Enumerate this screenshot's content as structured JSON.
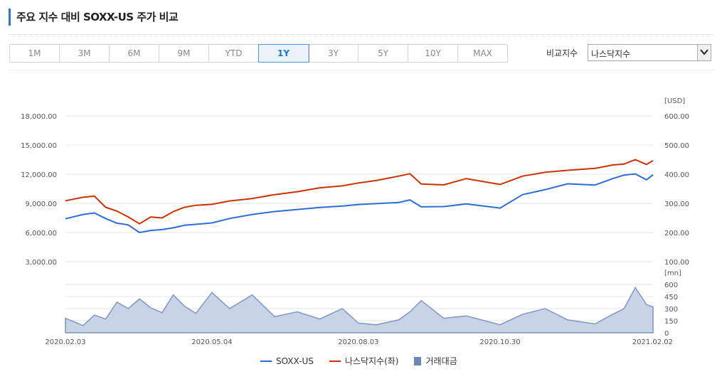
{
  "title": "주요 지수 대비 SOXX-US 주가 비교",
  "periods": [
    "1M",
    "3M",
    "6M",
    "9M",
    "YTD",
    "1Y",
    "3Y",
    "5Y",
    "10Y",
    "MAX"
  ],
  "active_period": "1Y",
  "compare": {
    "label": "비교지수",
    "value": "나스닥지수"
  },
  "colors": {
    "soxx": "#2b6fd6",
    "nasdaq": "#cc3300",
    "volume_fill": "#c9d3e6",
    "volume_line": "#7f96c4",
    "volume_legend": "#6d86b8"
  },
  "chart_data": {
    "type": "line",
    "x_ticks": [
      "2020.02.03",
      "2020.05.04",
      "2020.08.03",
      "2020.10.30",
      "2021.02.02"
    ],
    "left_axis": {
      "ticks": [
        "18,000.00",
        "15,000.00",
        "12,000.00",
        "9,000.00",
        "6,000.00",
        "3,000.00"
      ],
      "range": [
        3000,
        18000
      ]
    },
    "right_axis": {
      "unit": "[USD]",
      "ticks": [
        "600.00",
        "500.00",
        "400.00",
        "300.00",
        "200.00",
        "100.00"
      ],
      "range": [
        100,
        600
      ]
    },
    "volume_axis": {
      "unit": "[mn]",
      "ticks": [
        "600",
        "450",
        "300",
        "150",
        "0"
      ],
      "range": [
        0,
        600
      ]
    },
    "x_range": [
      "2020.02.03",
      "2021.02.02"
    ],
    "series": [
      {
        "name": "SOXX-US",
        "axis": "right",
        "x": [
          "2020.02.03",
          "2020.02.14",
          "2020.02.21",
          "2020.02.28",
          "2020.03.06",
          "2020.03.13",
          "2020.03.20",
          "2020.03.27",
          "2020.04.03",
          "2020.04.10",
          "2020.04.17",
          "2020.04.24",
          "2020.05.04",
          "2020.05.15",
          "2020.05.29",
          "2020.06.12",
          "2020.06.26",
          "2020.07.10",
          "2020.07.24",
          "2020.08.03",
          "2020.08.14",
          "2020.08.28",
          "2020.09.04",
          "2020.09.11",
          "2020.09.25",
          "2020.10.09",
          "2020.10.30",
          "2020.11.13",
          "2020.11.27",
          "2020.12.11",
          "2020.12.28",
          "2021.01.08",
          "2021.01.15",
          "2021.01.22",
          "2021.01.29",
          "2021.02.02"
        ],
        "values": [
          247,
          262,
          267,
          248,
          232,
          226,
          200,
          207,
          210,
          216,
          225,
          228,
          233,
          248,
          262,
          272,
          279,
          286,
          291,
          296,
          299,
          303,
          312,
          288,
          289,
          298,
          284,
          330,
          347,
          367,
          363,
          385,
          397,
          401,
          381,
          398
        ]
      },
      {
        "name": "나스닥지수(좌)",
        "axis": "left",
        "x": [
          "2020.02.03",
          "2020.02.14",
          "2020.02.21",
          "2020.02.28",
          "2020.03.06",
          "2020.03.13",
          "2020.03.20",
          "2020.03.27",
          "2020.04.03",
          "2020.04.10",
          "2020.04.17",
          "2020.04.24",
          "2020.05.04",
          "2020.05.15",
          "2020.05.29",
          "2020.06.12",
          "2020.06.26",
          "2020.07.10",
          "2020.07.24",
          "2020.08.03",
          "2020.08.14",
          "2020.08.28",
          "2020.09.04",
          "2020.09.11",
          "2020.09.25",
          "2020.10.09",
          "2020.10.30",
          "2020.11.13",
          "2020.11.27",
          "2020.12.11",
          "2020.12.28",
          "2021.01.08",
          "2021.01.15",
          "2021.01.22",
          "2021.01.29",
          "2021.02.02"
        ],
        "values": [
          9270,
          9630,
          9750,
          8600,
          8200,
          7600,
          6900,
          7600,
          7500,
          8150,
          8600,
          8800,
          8900,
          9250,
          9500,
          9900,
          10200,
          10600,
          10800,
          11100,
          11350,
          11800,
          12050,
          11000,
          10900,
          11550,
          10950,
          11800,
          12200,
          12400,
          12600,
          12950,
          13050,
          13500,
          13000,
          13400
        ]
      },
      {
        "name": "거래대금",
        "axis": "volume",
        "x": [
          "2020.02.03",
          "2020.02.14",
          "2020.02.21",
          "2020.02.28",
          "2020.03.06",
          "2020.03.13",
          "2020.03.20",
          "2020.03.27",
          "2020.04.03",
          "2020.04.10",
          "2020.04.17",
          "2020.04.24",
          "2020.05.04",
          "2020.05.15",
          "2020.05.29",
          "2020.06.12",
          "2020.06.26",
          "2020.07.10",
          "2020.07.24",
          "2020.08.03",
          "2020.08.14",
          "2020.08.28",
          "2020.09.04",
          "2020.09.11",
          "2020.09.25",
          "2020.10.09",
          "2020.10.30",
          "2020.11.13",
          "2020.11.27",
          "2020.12.11",
          "2020.12.28",
          "2021.01.08",
          "2021.01.15",
          "2021.01.22",
          "2021.01.29",
          "2021.02.02"
        ],
        "values": [
          180,
          90,
          220,
          170,
          380,
          300,
          420,
          310,
          250,
          470,
          330,
          240,
          500,
          300,
          470,
          200,
          260,
          170,
          300,
          120,
          100,
          160,
          260,
          400,
          180,
          210,
          100,
          230,
          300,
          160,
          110,
          230,
          300,
          560,
          350,
          320
        ]
      }
    ]
  }
}
